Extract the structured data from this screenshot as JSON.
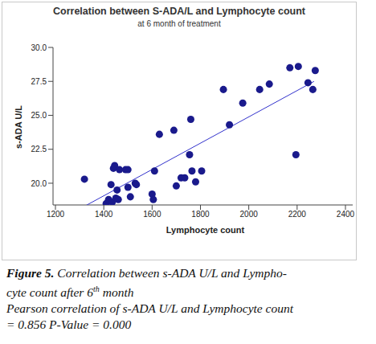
{
  "chart_data": {
    "type": "scatter",
    "title": "Correlation between S-ADA/L and Lymphocyte count",
    "subtitle": "at 6 month of treatment",
    "x_label": "Lymphocyte count",
    "y_label": "s-ADA U/L",
    "x": [
      1320,
      1410,
      1420,
      1430,
      1435,
      1440,
      1445,
      1450,
      1455,
      1460,
      1465,
      1490,
      1500,
      1500,
      1510,
      1530,
      1535,
      1600,
      1605,
      1610,
      1630,
      1690,
      1700,
      1720,
      1735,
      1755,
      1760,
      1765,
      1780,
      1805,
      1895,
      1920,
      1975,
      2045,
      2085,
      2170,
      2195,
      2205,
      2245,
      2265,
      2275
    ],
    "values": [
      20.3,
      18.5,
      18.8,
      19.9,
      18.6,
      21.1,
      21.3,
      18.9,
      19.5,
      18.8,
      21.0,
      21.0,
      19.7,
      21.0,
      19.0,
      20.0,
      19.9,
      19.2,
      18.8,
      20.9,
      23.6,
      23.9,
      19.8,
      20.4,
      20.4,
      22.1,
      24.7,
      20.9,
      20.1,
      20.9,
      26.9,
      24.3,
      25.9,
      26.9,
      27.3,
      28.5,
      22.1,
      28.6,
      27.4,
      26.9,
      28.3
    ],
    "color": "#1a1a8c",
    "marker": "circle",
    "fit_line": {
      "x": [
        1320,
        2270
      ],
      "values": [
        18.3,
        27.5
      ],
      "color": "#3333cc",
      "line_style": "solid"
    },
    "xlim": [
      1190,
      2430
    ],
    "xticks": [
      1200,
      1400,
      1600,
      1800,
      2000,
      2200,
      2400
    ],
    "ylim": [
      18.4,
      30
    ],
    "yticks": [
      {
        "value": 20,
        "label": "20.0"
      },
      {
        "value": 22.5,
        "label": "22.5"
      },
      {
        "value": 25,
        "label": "25.0"
      },
      {
        "value": 27.5,
        "label": "27.5"
      },
      {
        "value": 30,
        "label": "30.0"
      }
    ],
    "grid": false,
    "caption": {
      "label": "Figure 5.",
      "line1": "Correlation between s-ADA U/L and Lympho-",
      "line2": [
        "cyte count after 6",
        "th",
        "month"
      ],
      "stats": [
        "Pearson correlation of s-ADA U/L and Lymphocyte count",
        "= 0.856 P-Value = 0.000"
      ]
    }
  }
}
